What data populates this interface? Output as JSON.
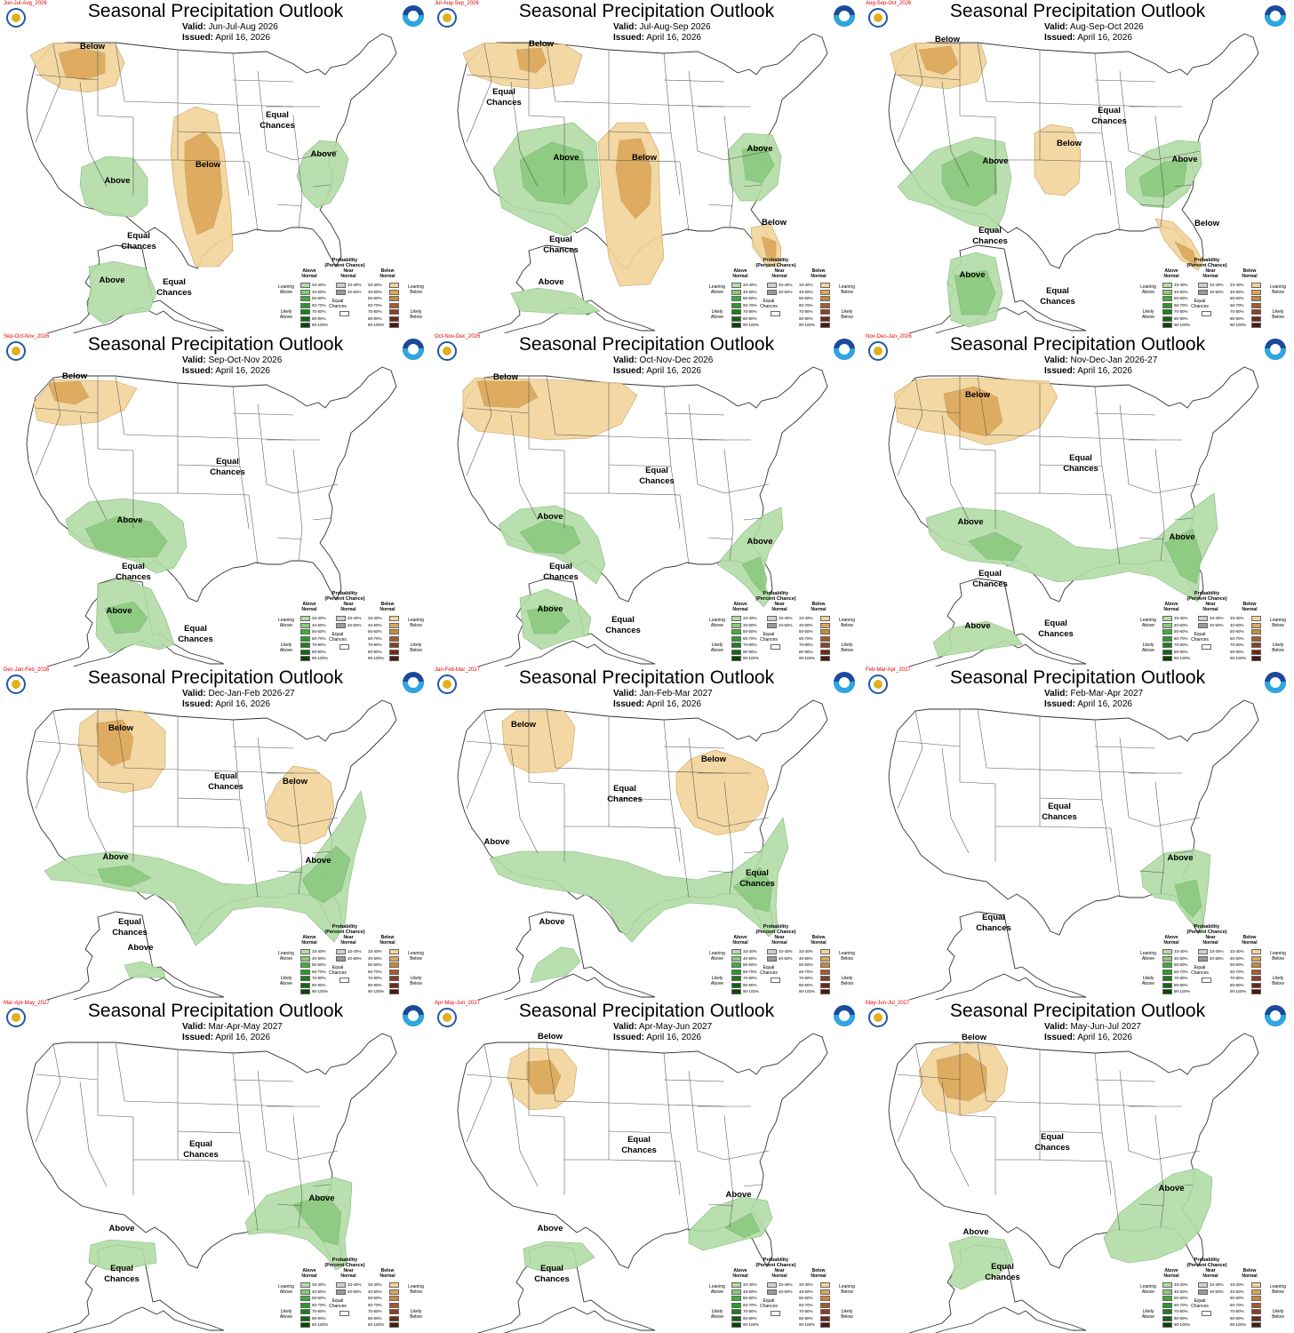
{
  "common": {
    "title": "Seasonal Precipitation Outlook",
    "valid_label": "Valid:",
    "issued_label": "Issued:",
    "issued_value": "April 16, 2026",
    "legend": {
      "title_line1": "Probability",
      "title_line2": "(Percent Chance)",
      "above_header": "Above Normal",
      "near_header": "Near Normal",
      "below_header": "Below Normal",
      "leaning_above": "Leaning Above",
      "likely_above": "Likely Above",
      "leaning_below": "Leaning Below",
      "likely_below": "Likely Below",
      "equal_chances": "Equal Chances",
      "above_ranges": [
        "33-40%",
        "40-50%",
        "50-60%",
        "60-70%",
        "70-80%",
        "80-90%",
        "90-100%"
      ],
      "near_ranges": [
        "33-40%",
        "40-50%"
      ],
      "below_ranges": [
        "33-40%",
        "40-50%",
        "50-60%",
        "60-70%",
        "70-80%",
        "80-90%",
        "90-100%"
      ],
      "above_colors": [
        "#b3dba6",
        "#8bc97d",
        "#3fae3a",
        "#2a9a2a",
        "#1e7d1e",
        "#156315",
        "#0b430b"
      ],
      "near_colors": [
        "#d0d0d0",
        "#9a9a9a"
      ],
      "below_colors": [
        "#f2d49a",
        "#dca75a",
        "#c98a3a",
        "#a85a2a",
        "#8a4020",
        "#6b2a18",
        "#4a1a10"
      ]
    }
  },
  "panels": [
    {
      "code": "Jun-Jul-Aug_2026",
      "valid": "Jun-Jul-Aug 2026",
      "labels": [
        "Below",
        "Below",
        "Above",
        "Equal Chances",
        "Above",
        "Equal Chances",
        "Above",
        "Equal Chances"
      ]
    },
    {
      "code": "Jul-Aug-Sep_2026",
      "valid": "Jul-Aug-Sep 2026",
      "labels": [
        "Below",
        "Equal Chances",
        "Above",
        "Below",
        "Above",
        "Below",
        "Equal Chances",
        "Above"
      ]
    },
    {
      "code": "Aug-Sep-Oct_2026",
      "valid": "Aug-Sep-Oct 2026",
      "labels": [
        "Below",
        "Equal Chances",
        "Above",
        "Below",
        "Above",
        "Below",
        "Equal Chances",
        "Above",
        "Equal Chances"
      ]
    },
    {
      "code": "Sep-Oct-Nov_2026",
      "valid": "Sep-Oct-Nov 2026",
      "labels": [
        "Below",
        "Equal Chances",
        "Above",
        "Equal Chances",
        "Above",
        "Equal Chances"
      ]
    },
    {
      "code": "Oct-Nov-Dec_2026",
      "valid": "Oct-Nov-Dec 2026",
      "labels": [
        "Below",
        "Equal Chances",
        "Above",
        "Above",
        "Equal Chances",
        "Above",
        "Equal Chances"
      ]
    },
    {
      "code": "Nov-Dec-Jan_2026",
      "valid": "Nov-Dec-Jan 2026-27",
      "labels": [
        "Below",
        "Equal Chances",
        "Above",
        "Above",
        "Equal Chances",
        "Above",
        "Equal Chances"
      ]
    },
    {
      "code": "Dec-Jan-Feb_2026",
      "valid": "Dec-Jan-Feb 2026-27",
      "labels": [
        "Below",
        "Equal Chances",
        "Below",
        "Above",
        "Above",
        "Equal Chances",
        "Above"
      ]
    },
    {
      "code": "Jan-Feb-Mar_2027",
      "valid": "Jan-Feb-Mar 2027",
      "labels": [
        "Below",
        "Below",
        "Equal Chances",
        "Above",
        "Equal Chances",
        "Above"
      ]
    },
    {
      "code": "Feb-Mar-Apr_2027",
      "valid": "Feb-Mar-Apr 2027",
      "labels": [
        "Equal Chances",
        "Above",
        "Equal Chances"
      ]
    },
    {
      "code": "Mar-Apr-May_2027",
      "valid": "Mar-Apr-May 2027",
      "labels": [
        "Equal Chances",
        "Above",
        "Above",
        "Equal Chances"
      ]
    },
    {
      "code": "Apr-May-Jun_2027",
      "valid": "Apr-May-Jun 2027",
      "labels": [
        "Below",
        "Equal Chances",
        "Above",
        "Above",
        "Equal Chances"
      ]
    },
    {
      "code": "May-Jun-Jul_2027",
      "valid": "May-Jun-Jul 2027",
      "labels": [
        "Below",
        "Equal Chances",
        "Above",
        "Above",
        "Equal Chances"
      ]
    }
  ]
}
